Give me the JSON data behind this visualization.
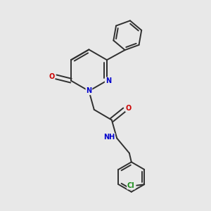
{
  "bg_color": "#e8e8e8",
  "bond_color": "#303030",
  "bond_width": 1.4,
  "atom_colors": {
    "N": "#0000cc",
    "O": "#cc0000",
    "Cl": "#1a8c1a"
  },
  "font_size": 7.0,
  "fig_size": [
    3.0,
    3.0
  ],
  "dpi": 100
}
